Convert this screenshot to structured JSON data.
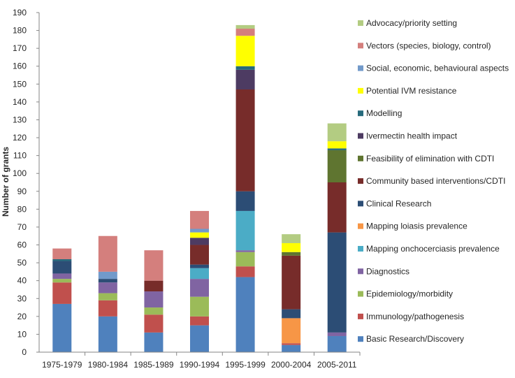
{
  "chart_data": {
    "type": "bar",
    "stacked": true,
    "title": "",
    "xlabel": "",
    "ylabel": "Number of grants",
    "ylim": [
      0,
      190
    ],
    "ytick_step": 10,
    "grid": false,
    "legend_position": "right",
    "categories": [
      "1975-1979",
      "1980-1984",
      "1985-1989",
      "1990-1994",
      "1995-1999",
      "2000-2004",
      "2005-2011"
    ],
    "series": [
      {
        "name": "Basic Research/Discovery",
        "color": "#4F81BD",
        "values": [
          27,
          20,
          11,
          15,
          42,
          4,
          9
        ]
      },
      {
        "name": "Immunology/pathogenesis",
        "color": "#C0504D",
        "values": [
          12,
          9,
          10,
          5,
          6,
          1,
          0
        ]
      },
      {
        "name": "Epidemiology/morbidity",
        "color": "#9BBB59",
        "values": [
          2,
          4,
          4,
          11,
          8,
          0,
          0
        ]
      },
      {
        "name": "Diagnostics",
        "color": "#8064A2",
        "values": [
          3,
          6,
          9,
          10,
          1,
          0,
          2
        ]
      },
      {
        "name": "Mapping onchocerciasis prevalence",
        "color": "#4BACC6",
        "values": [
          0,
          0,
          0,
          6,
          22,
          0,
          0
        ]
      },
      {
        "name": "Mapping loiasis prevalence",
        "color": "#F79646",
        "values": [
          0,
          0,
          0,
          0,
          0,
          14,
          0
        ]
      },
      {
        "name": "Clinical Research",
        "color": "#2C4D75",
        "values": [
          7,
          2,
          0,
          2,
          11,
          5,
          56
        ]
      },
      {
        "name": "Community based interventions/CDTI",
        "color": "#772C2A",
        "values": [
          0,
          0,
          6,
          11,
          57,
          30,
          28
        ]
      },
      {
        "name": "Feasibility of elimination with CDTI",
        "color": "#5F7530",
        "values": [
          0,
          0,
          0,
          0,
          0,
          2,
          18
        ]
      },
      {
        "name": "Ivermectin health impact",
        "color": "#4D3B62",
        "values": [
          0,
          0,
          0,
          4,
          11,
          0,
          0
        ]
      },
      {
        "name": "Modelling",
        "color": "#276A7C",
        "values": [
          1,
          0,
          0,
          0,
          2,
          0,
          1
        ]
      },
      {
        "name": "Potential IVM resistance",
        "color": "#FFFF00",
        "values": [
          0,
          0,
          0,
          3,
          17,
          5,
          4
        ]
      },
      {
        "name": "Social, economic, behavioural aspects",
        "color": "#729ACA",
        "values": [
          0,
          4,
          0,
          2,
          0,
          0,
          0
        ]
      },
      {
        "name": "Vectors (species, biology, control)",
        "color": "#D47F7D",
        "values": [
          6,
          20,
          17,
          10,
          4,
          0,
          0
        ]
      },
      {
        "name": "Advocacy/priority setting",
        "color": "#B3CC82",
        "values": [
          0,
          0,
          0,
          0,
          2,
          5,
          10
        ]
      }
    ]
  }
}
